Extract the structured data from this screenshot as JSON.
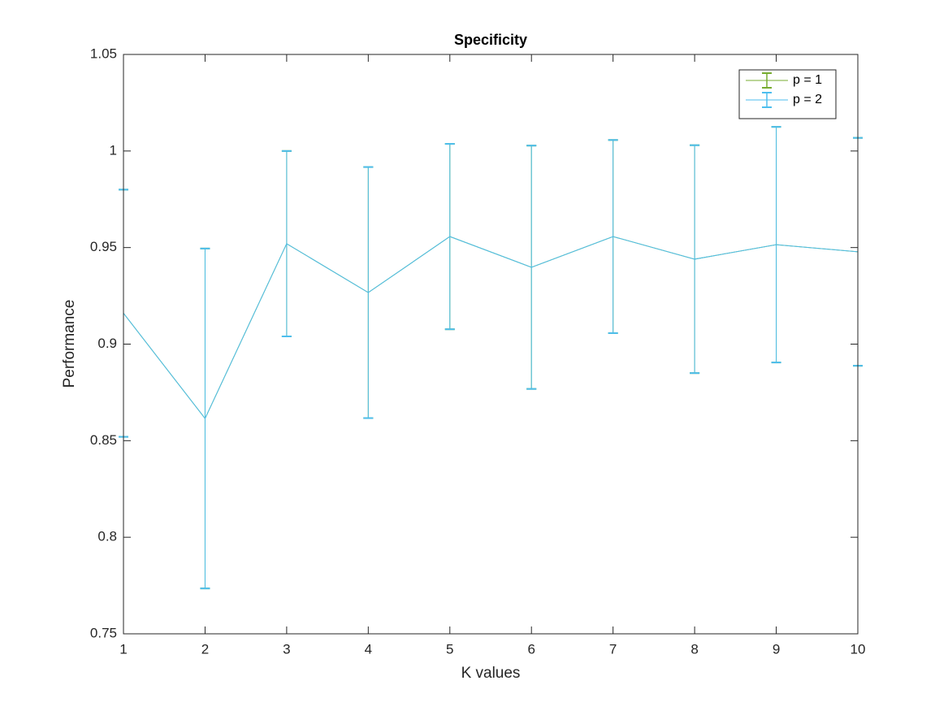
{
  "chart_data": {
    "type": "errorbar",
    "title": "Specificity",
    "x_label": "K values",
    "y_label": "Performance",
    "x": [
      1,
      2,
      3,
      4,
      5,
      6,
      7,
      8,
      9,
      10
    ],
    "series": [
      {
        "name": "p = 1",
        "color": "#77ac30",
        "values": [
          0.916,
          0.8615,
          0.952,
          0.9267,
          0.9557,
          0.9398,
          0.9557,
          0.944,
          0.9515,
          0.9478
        ],
        "errors": [
          0.064,
          0.088,
          0.048,
          0.065,
          0.048,
          0.063,
          0.05,
          0.059,
          0.061,
          0.059
        ]
      },
      {
        "name": "p = 2",
        "color": "#4dbeee",
        "values": [
          0.916,
          0.8615,
          0.952,
          0.9267,
          0.9557,
          0.9398,
          0.9557,
          0.944,
          0.9515,
          0.9478
        ],
        "errors": [
          0.064,
          0.088,
          0.048,
          0.065,
          0.048,
          0.063,
          0.05,
          0.059,
          0.061,
          0.059
        ]
      }
    ],
    "xlim": [
      1,
      10
    ],
    "xticks": [
      1,
      2,
      3,
      4,
      5,
      6,
      7,
      8,
      9,
      10
    ],
    "ylim": [
      0.75,
      1.05
    ],
    "yticks": [
      0.75,
      0.8,
      0.85,
      0.9,
      0.95,
      1,
      1.05
    ],
    "grid": false,
    "legend": "northeast"
  }
}
